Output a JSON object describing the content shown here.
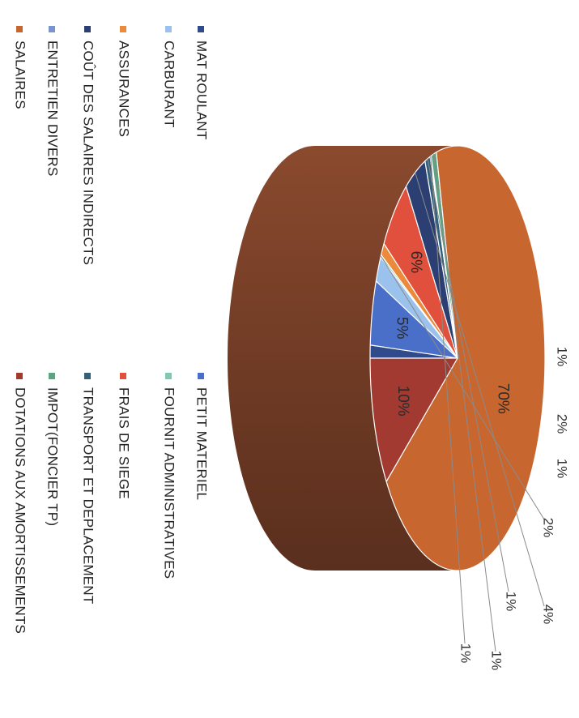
{
  "chart_data": {
    "type": "pie",
    "style": "3d",
    "legend_placement": "left (image rotated 90 degrees)",
    "categories": [
      "MAT ROULANT",
      "PETIT MATERIEL",
      "CARBURANT",
      "FOURNIT ADMINISTRATIVES",
      "ASSURANCES",
      "FRAIS DE SIEGE",
      "COÛT DES SALAIRES INDIRECTS",
      "TRANSPORT ET DEPLACEMENT",
      "ENTRETIEN DIVERS",
      "IMPOT(FONCIER TP)",
      "SALAIRES",
      "DOTATIONS AUX AMORTISSEMENTS"
    ],
    "values": [
      1,
      5,
      2,
      0.2,
      1,
      6,
      4,
      1,
      0.2,
      1,
      70,
      10
    ],
    "labels": [
      "1%",
      "5%",
      "2%",
      "",
      "1%",
      "6%",
      "4%",
      "1%",
      "",
      "1%",
      "70%",
      "10%"
    ],
    "colors": [
      "#2F4B8C",
      "#4A6FC8",
      "#9BC2EC",
      "#7FC8B4",
      "#EC8A3C",
      "#E0503C",
      "#2B3F73",
      "#35607A",
      "#7C93D2",
      "#5AA582",
      "#C8662F",
      "#A23A32"
    ]
  }
}
